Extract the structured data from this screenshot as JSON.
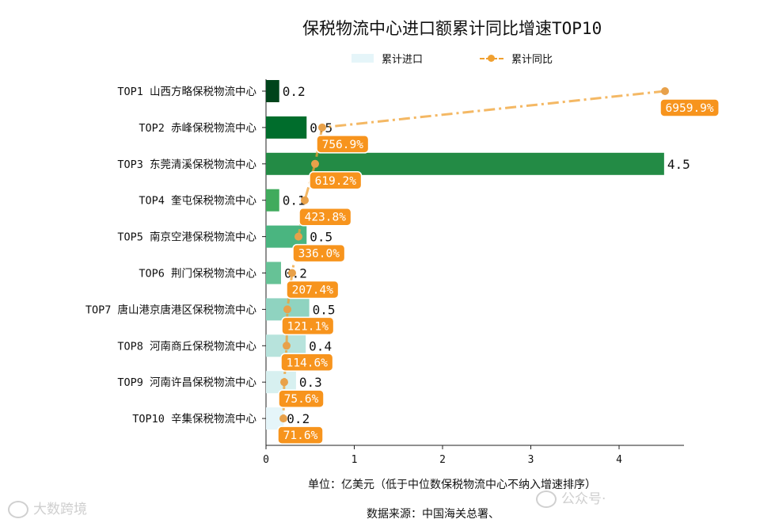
{
  "chart_data": {
    "type": "bar",
    "title": "保税物流中心进口额累计同比增速TOP10",
    "categories": [
      "TOP1 山西方略保税物流中心",
      "TOP2 赤峰保税物流中心",
      "TOP3 东莞清溪保税物流中心",
      "TOP4 奎屯保税物流中心",
      "TOP5 南京空港保税物流中心",
      "TOP6 荆门保税物流中心",
      "TOP7 唐山港京唐港区保税物流中心",
      "TOP8 河南商丘保税物流中心",
      "TOP9 河南许昌保税物流中心",
      "TOP10 辛集保税物流中心"
    ],
    "series": [
      {
        "name": "累计进口",
        "type": "bar",
        "values": [
          0.15,
          0.46,
          4.51,
          0.15,
          0.46,
          0.17,
          0.49,
          0.45,
          0.34,
          0.2
        ],
        "value_labels": [
          "0.2",
          "0.5",
          "4.5",
          "0.1",
          "0.5",
          "0.2",
          "0.5",
          "0.4",
          "0.3",
          "0.2"
        ],
        "colors": [
          "#00441b",
          "#006d2c",
          "#238b45",
          "#41ab5d",
          "#4ab580",
          "#66c296",
          "#8fd3c0",
          "#b7e3dc",
          "#d7f0f0",
          "#e5f5f9"
        ]
      },
      {
        "name": "累计同比",
        "type": "line",
        "values": [
          6959.9,
          756.9,
          619.2,
          423.8,
          336.0,
          207.4,
          121.1,
          114.6,
          75.6,
          71.6
        ],
        "value_labels": [
          "6959.9%",
          "756.9%",
          "619.2%",
          "423.8%",
          "336.0%",
          "207.4%",
          "121.1%",
          "114.6%",
          "75.6%",
          "71.6%"
        ],
        "color": "#f0a030"
      }
    ],
    "xlim": [
      0,
      4.75
    ],
    "xticks": [
      "0",
      "1",
      "2",
      "3",
      "4"
    ],
    "grid": false,
    "legend": "top-center"
  },
  "unit_note": "单位：亿美元（低于中位数保税物流中心不纳入增速排序）",
  "source_note": "数据来源：中国海关总署、",
  "watermark_left": "大数跨境",
  "watermark_right": "公众号·",
  "colors": {
    "line": "#f0a030",
    "label_bg": "#f7941d"
  }
}
